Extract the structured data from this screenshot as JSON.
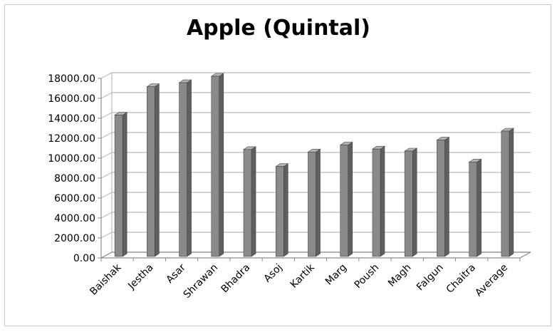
{
  "chart_data": {
    "type": "bar",
    "title": "Apple (Quintal)",
    "xlabel": "",
    "ylabel": "",
    "categories": [
      "Baishak",
      "Jestha",
      "Asar",
      "Shrawan",
      "Bhadra",
      "Asoj",
      "Kartik",
      "Marg",
      "Poush",
      "Magh",
      "Falgun",
      "Chaitra",
      "Average"
    ],
    "values": [
      14100,
      16950,
      17350,
      18000,
      10650,
      8950,
      10400,
      11100,
      10700,
      10500,
      11600,
      9400,
      12500
    ],
    "ylim": [
      0,
      18000
    ],
    "yticks": [
      "0.00",
      "2000.00",
      "4000.00",
      "6000.00",
      "8000.00",
      "10000.00",
      "12000.00",
      "14000.00",
      "16000.00",
      "18000.00"
    ],
    "grid": true,
    "legend": "none",
    "colors": {
      "bar_front": "#8a8a8a",
      "bar_side": "#5f5f5f",
      "bar_top": "#b3b3b3",
      "grid": "#bcbcbc",
      "axis": "#8c8c8c"
    }
  }
}
